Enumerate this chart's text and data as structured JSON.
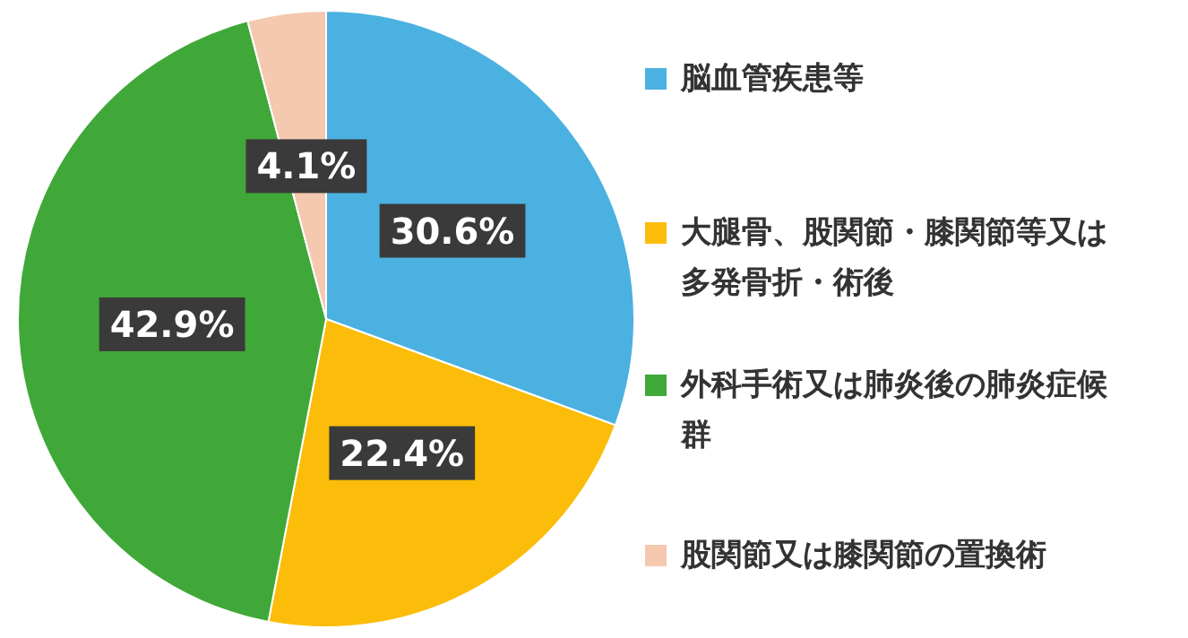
{
  "chart_data": {
    "type": "pie",
    "categories": [
      "脳血管疾患等",
      "大腿骨、股関節・膝関節等又は多発骨折・術後",
      "外科手術又は肺炎後の肺炎症候群",
      "股関節又は膝関節の置換術"
    ],
    "values": [
      30.6,
      22.4,
      42.9,
      4.1
    ],
    "colors": [
      "#4bb1e1",
      "#fbbd0a",
      "#3fa839",
      "#f5c8b0"
    ],
    "value_labels": [
      "30.6%",
      "22.4%",
      "42.9%",
      "4.1%"
    ],
    "legend": "right"
  }
}
